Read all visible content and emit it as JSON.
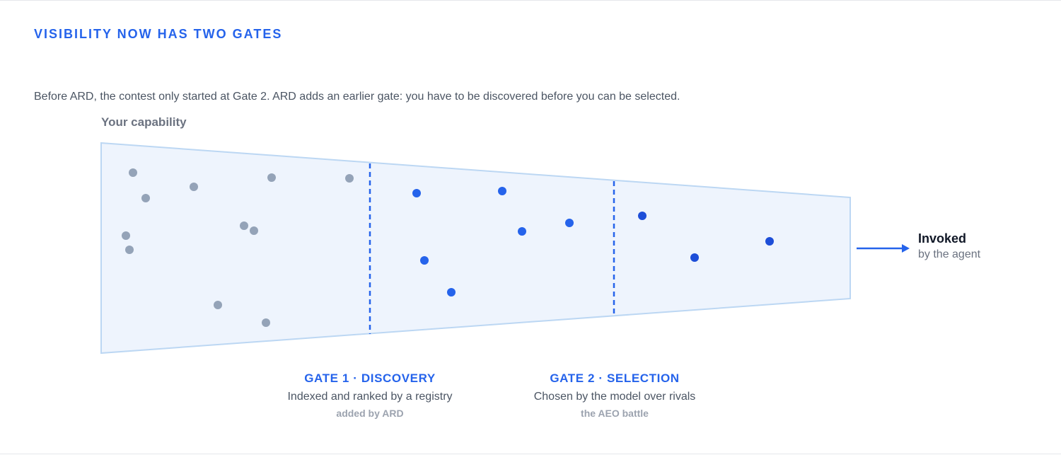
{
  "heading": "VISIBILITY NOW HAS TWO GATES",
  "intro": "Before ARD, the contest only started at Gate 2. ARD adds an earlier gate: you have to be discovered before you can be selected.",
  "funnel": {
    "start_label": "Your capability",
    "end_title": "Invoked",
    "end_subtitle": "by the agent",
    "colors": {
      "fill": "#eef4fd",
      "outline": "#bcd7f3",
      "gate_line": "#2563eb",
      "arrow": "#2563eb",
      "undiscovered_dot": "#94a3b8",
      "discovered_dot": "#2563eb",
      "selected_dot": "#1d4ed8"
    }
  },
  "gates": [
    {
      "title": "GATE 1 · DISCOVERY",
      "description": "Indexed and ranked by a registry",
      "note": "added by ARD"
    },
    {
      "title": "GATE 2 · SELECTION",
      "description": "Chosen by the model over rivals",
      "note": "the AEO battle"
    }
  ]
}
